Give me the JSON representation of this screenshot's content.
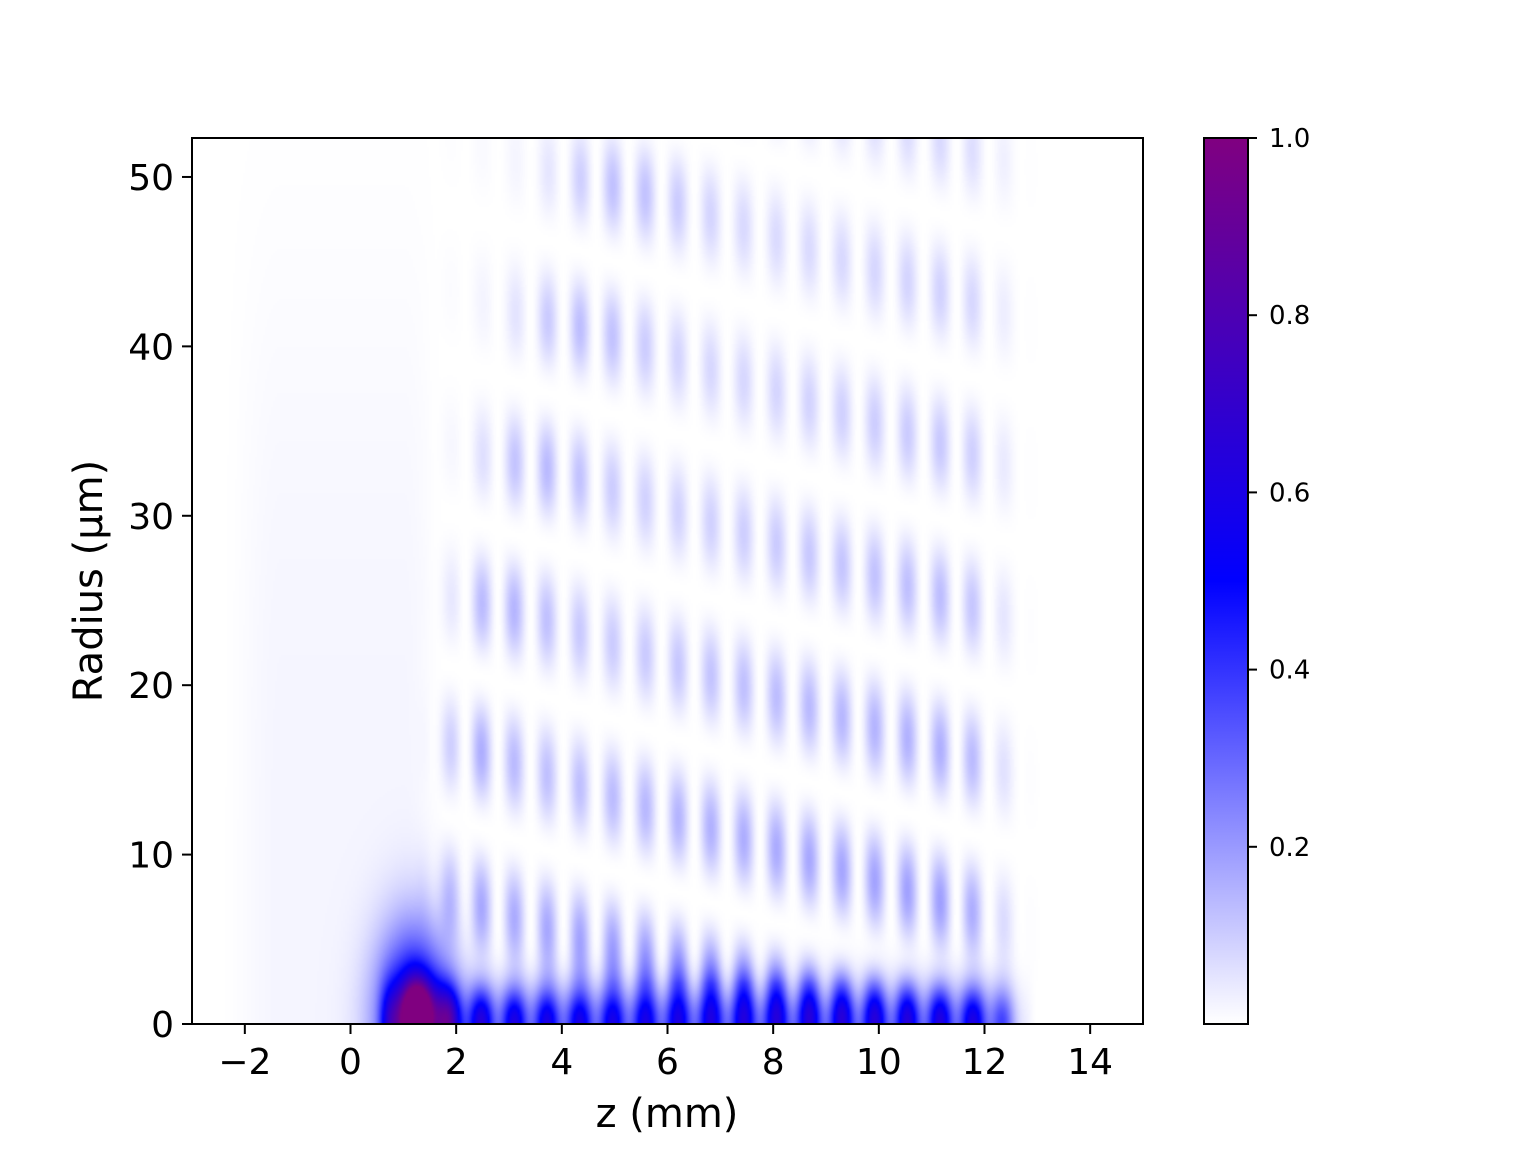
{
  "chart_data": {
    "type": "heatmap",
    "title": "",
    "xlabel": "z (mm)",
    "ylabel": "Radius (μm)",
    "xlim": [
      -3,
      15
    ],
    "ylim": [
      0,
      52.3
    ],
    "x_ticks": [
      -2,
      0,
      2,
      4,
      6,
      8,
      10,
      12,
      14
    ],
    "x_tick_labels": [
      "−2",
      "0",
      "2",
      "4",
      "6",
      "8",
      "10",
      "12",
      "14"
    ],
    "y_ticks": [
      0,
      10,
      20,
      30,
      40,
      50
    ],
    "y_tick_labels": [
      "0",
      "10",
      "20",
      "30",
      "40",
      "50"
    ],
    "grid": false,
    "colormap": {
      "stops": [
        {
          "value": 0.0,
          "color": "#ffffff"
        },
        {
          "value": 0.5,
          "color": "#0000ff"
        },
        {
          "value": 1.0,
          "color": "#800080"
        }
      ]
    },
    "colorbar": {
      "range": [
        0,
        1.0
      ],
      "ticks": [
        0.2,
        0.4,
        0.6,
        0.8,
        1.0
      ],
      "tick_labels": [
        "0.2",
        "0.4",
        "0.6",
        "0.8",
        "1.0"
      ],
      "placement": "right"
    },
    "field": {
      "description_of_values": "normalized intensity vs z and radius",
      "on_axis_peak": {
        "z": 1.3,
        "r": 0.8,
        "value": 1.0
      },
      "focal_line": {
        "z_start": 0.6,
        "z_end": 12.5,
        "r_max": 2.5,
        "value": 0.6
      },
      "main_lobe": {
        "z": 1.2,
        "r": 4.0,
        "value": 0.6
      },
      "fringe_period_z": 0.62,
      "ring_spacing_r": 9.0,
      "fringe_region": {
        "z_start": 1.5,
        "z_end": 12.8,
        "r_max": 52
      },
      "input_beam_halo": {
        "z_start": -2.5,
        "z_end": 1.0,
        "r_max": 42,
        "value": 0.02
      }
    }
  }
}
